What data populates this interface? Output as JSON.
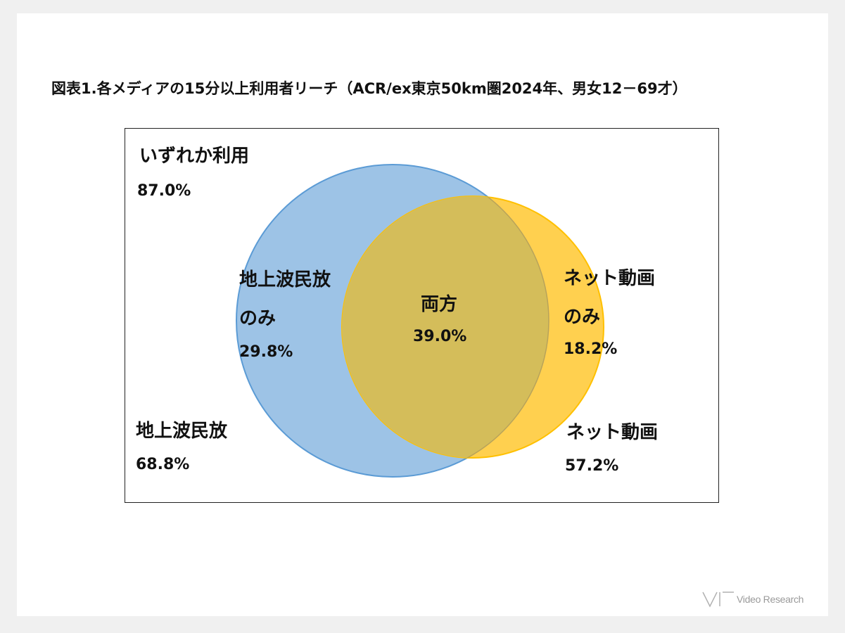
{
  "title": "図表1.各メディアの15分以上利用者リーチ（ACR/ex東京50km圏2024年、男女12－69才）",
  "labels": {
    "any_use": {
      "text": "いずれか利用",
      "value": "87.0%"
    },
    "terrestrial_only": {
      "line1": "地上波民放",
      "line2": "のみ",
      "value": "29.8%"
    },
    "both": {
      "text": "両方",
      "value": "39.0%"
    },
    "net_only": {
      "line1": "ネット動画",
      "line2": "のみ",
      "value": "18.2%"
    },
    "terrestrial": {
      "text": "地上波民放",
      "value": "68.8%"
    },
    "net": {
      "text": "ネット動画",
      "value": "57.2%"
    }
  },
  "colors": {
    "terrestrial_fill": "#9dc3e6",
    "terrestrial_stroke": "#5b9bd5",
    "net_fill": "#ffd04f",
    "net_stroke": "#ffc000",
    "overlap": "#d4bd5a"
  },
  "watermark": "Video Research"
}
